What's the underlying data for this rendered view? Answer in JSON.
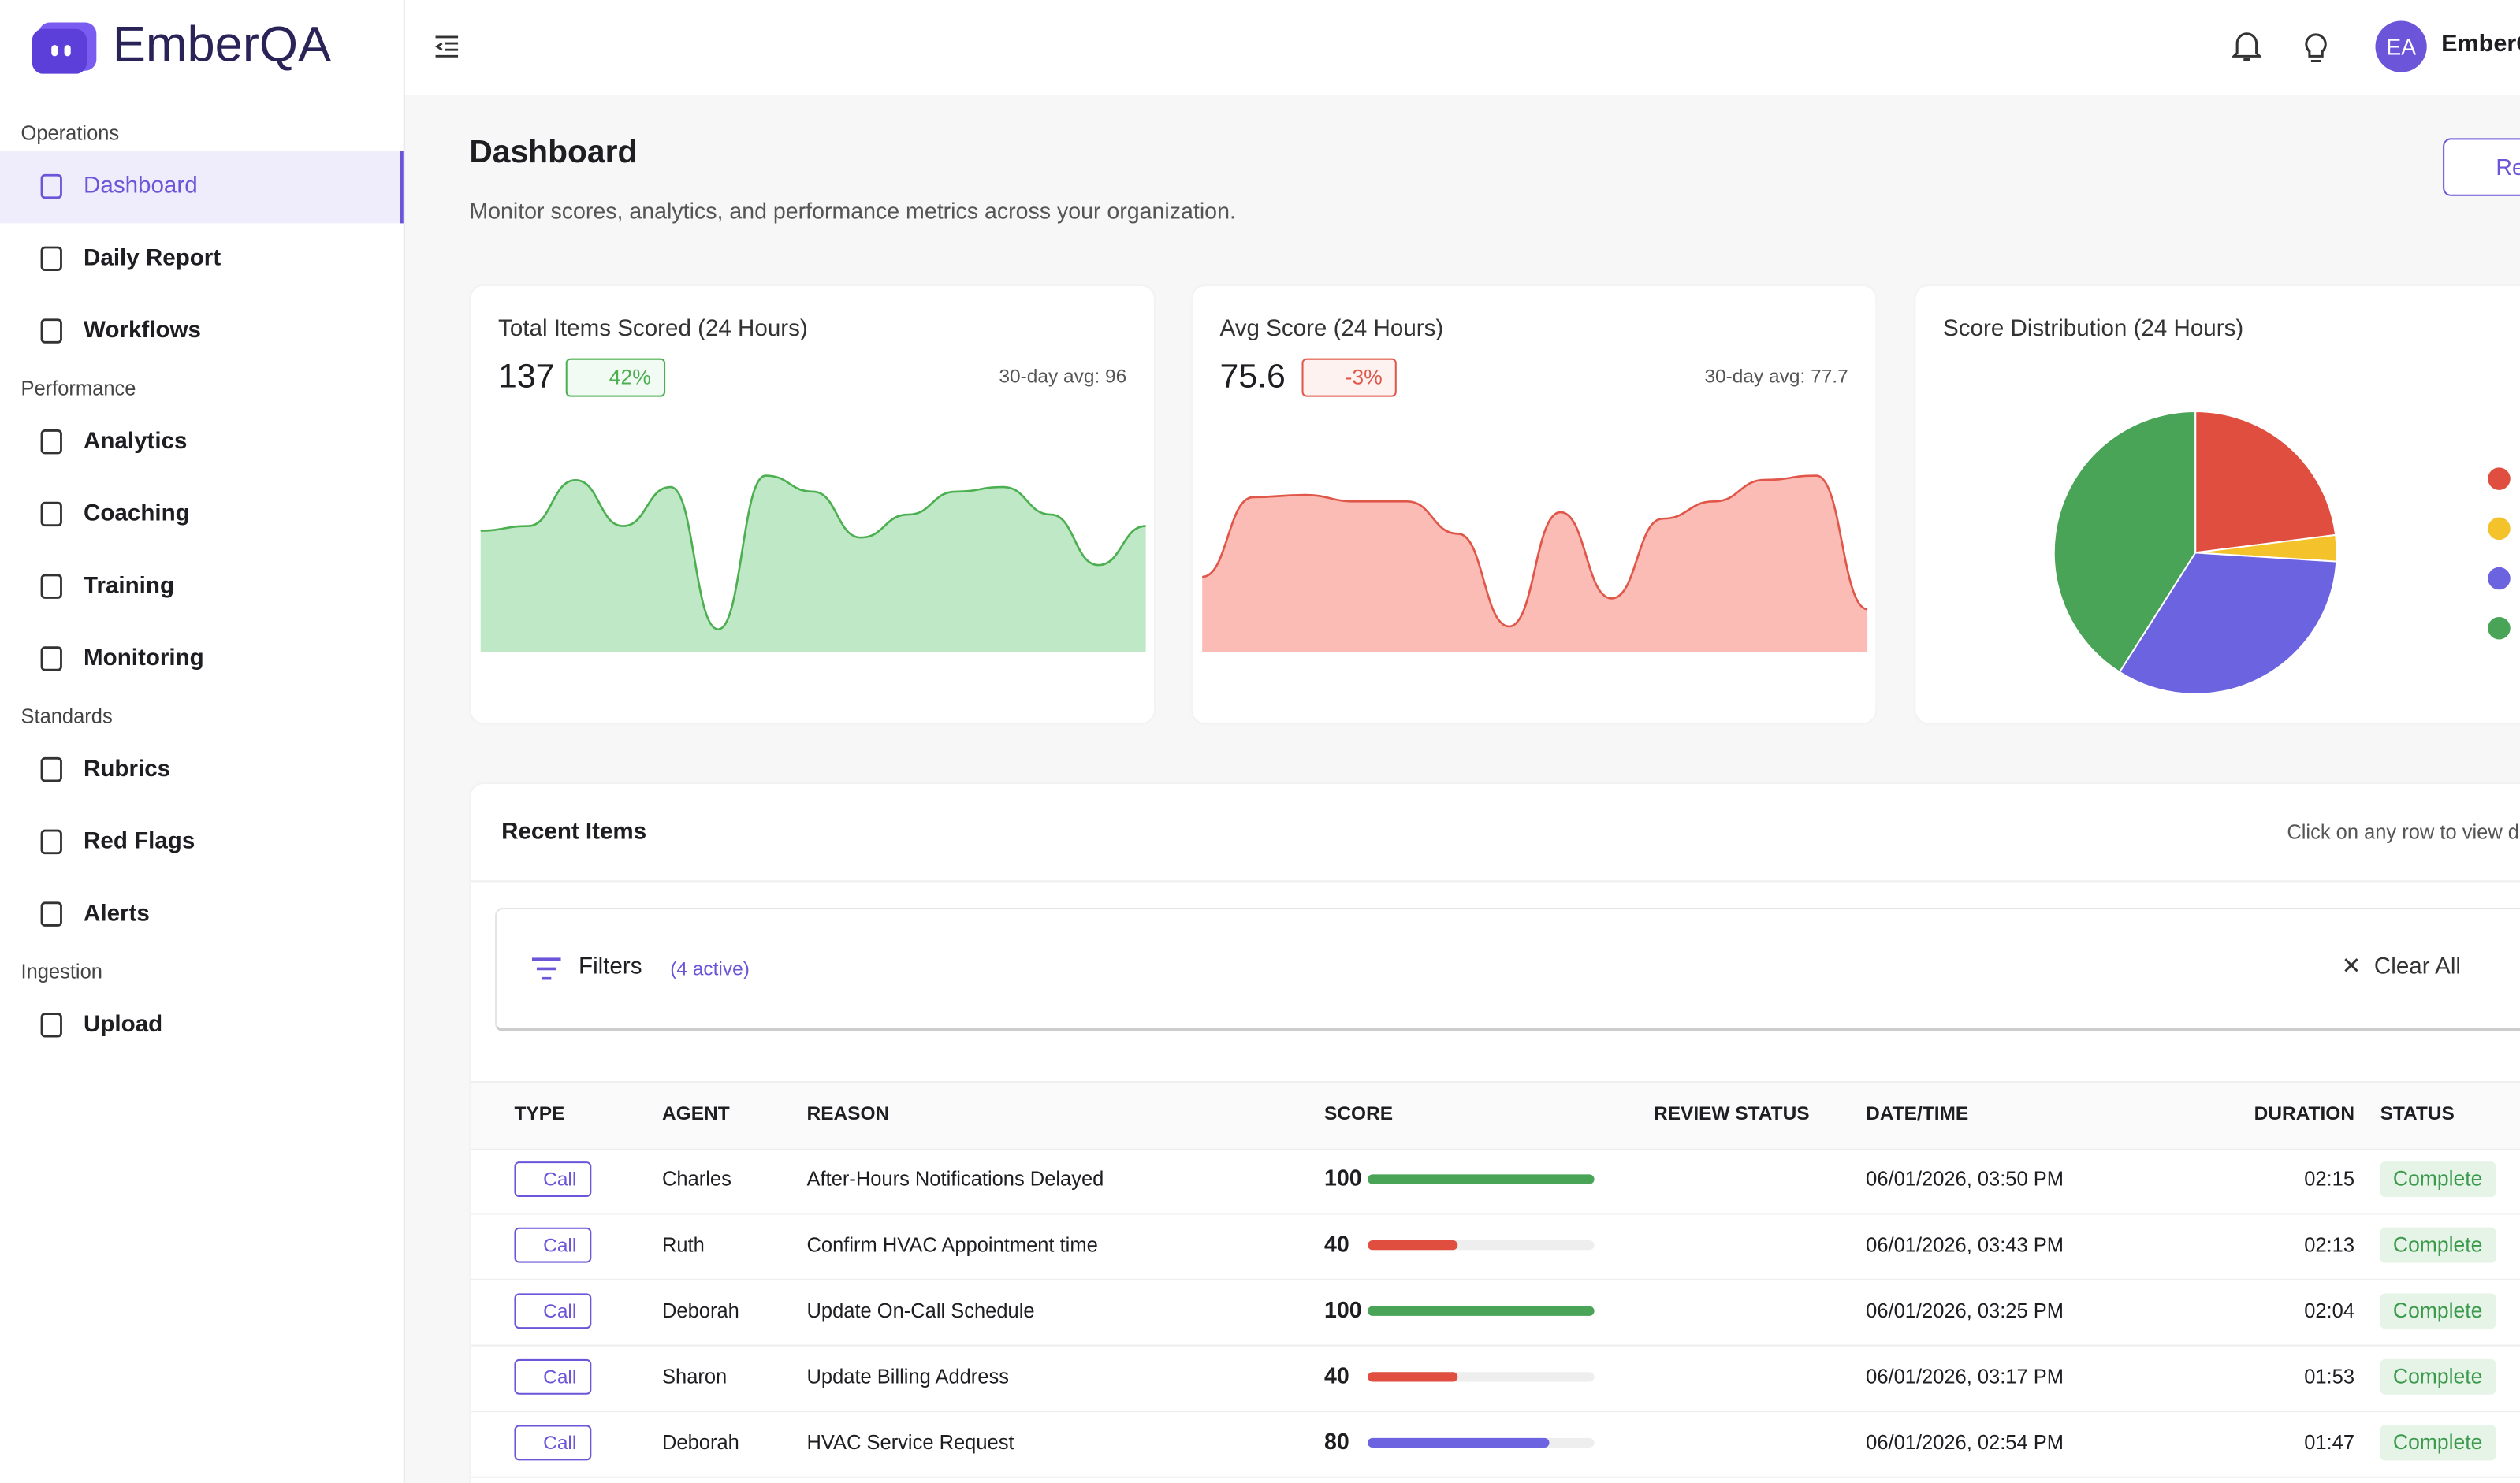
{
  "brand": "EmberQA",
  "sidebar": {
    "sections": [
      {
        "title": "Operations",
        "items": [
          "Dashboard",
          "Daily Report",
          "Workflows"
        ]
      },
      {
        "title": "Performance",
        "items": [
          "Analytics",
          "Coaching",
          "Training",
          "Monitoring"
        ]
      },
      {
        "title": "Standards",
        "items": [
          "Rubrics",
          "Red Flags",
          "Alerts"
        ]
      },
      {
        "title": "Ingestion",
        "items": [
          "Upload"
        ]
      }
    ]
  },
  "header": {
    "avatar": "EA",
    "user": "EmberQA"
  },
  "page": {
    "title": "Dashboard",
    "subtitle": "Monitor scores, analytics, and performance metrics across your organization.",
    "refresh": "Refresh"
  },
  "cards": [
    {
      "title": "Total Items Scored (24 Hours)",
      "value": "137",
      "change": "42%",
      "avg": "30-day avg: 96",
      "color": "#4caf50",
      "fill": "#bfe8c6",
      "values": [
        53,
        55,
        75,
        55,
        72,
        10,
        77,
        70,
        50,
        60,
        70,
        72,
        60,
        38,
        55
      ]
    },
    {
      "title": "Avg Score (24 Hours)",
      "value": "75.6",
      "change": "-3%",
      "avg": "30-day avg: 77.7",
      "color": "#e0574a",
      "fill": "#fbbcb5",
      "values": [
        35,
        72,
        73,
        70,
        70,
        55,
        12,
        65,
        25,
        62,
        70,
        80,
        82,
        20
      ]
    }
  ],
  "chart_data": {
    "type": "pie",
    "title": "Score Distribution (24 Hours)",
    "values": [
      23,
      3,
      33,
      41
    ],
    "colors": [
      "#e04e3f",
      "#f4c22b",
      "#6c63e0",
      "#4aa458"
    ]
  },
  "recent": {
    "title": "Recent Items",
    "hint": "Click on any row to view details",
    "filters": "Filters",
    "active": "(4 active)",
    "clear": "Clear All"
  },
  "table": {
    "columns": [
      "TYPE",
      "AGENT",
      "REASON",
      "SCORE",
      "REVIEW STATUS",
      "DATE/TIME",
      "DURATION",
      "STATUS"
    ],
    "rows": [
      {
        "type": "Call",
        "agent": "Charles",
        "reason": "After-Hours Notifications Delayed",
        "score": 100,
        "score_color": "#4aa458",
        "date": "06/01/2026, 03:50 PM",
        "duration": "02:15",
        "status": "Complete"
      },
      {
        "type": "Call",
        "agent": "Ruth",
        "reason": "Confirm HVAC Appointment time",
        "score": 40,
        "score_color": "#e04e3f",
        "date": "06/01/2026, 03:43 PM",
        "duration": "02:13",
        "status": "Complete"
      },
      {
        "type": "Call",
        "agent": "Deborah",
        "reason": "Update On-Call Schedule",
        "score": 100,
        "score_color": "#4aa458",
        "date": "06/01/2026, 03:25 PM",
        "duration": "02:04",
        "status": "Complete"
      },
      {
        "type": "Call",
        "agent": "Sharon",
        "reason": "Update Billing Address",
        "score": 40,
        "score_color": "#e04e3f",
        "date": "06/01/2026, 03:17 PM",
        "duration": "01:53",
        "status": "Complete"
      },
      {
        "type": "Call",
        "agent": "Deborah",
        "reason": "HVAC Service Request",
        "score": 80,
        "score_color": "#6c63e0",
        "date": "06/01/2026, 02:54 PM",
        "duration": "01:47",
        "status": "Complete"
      }
    ]
  }
}
